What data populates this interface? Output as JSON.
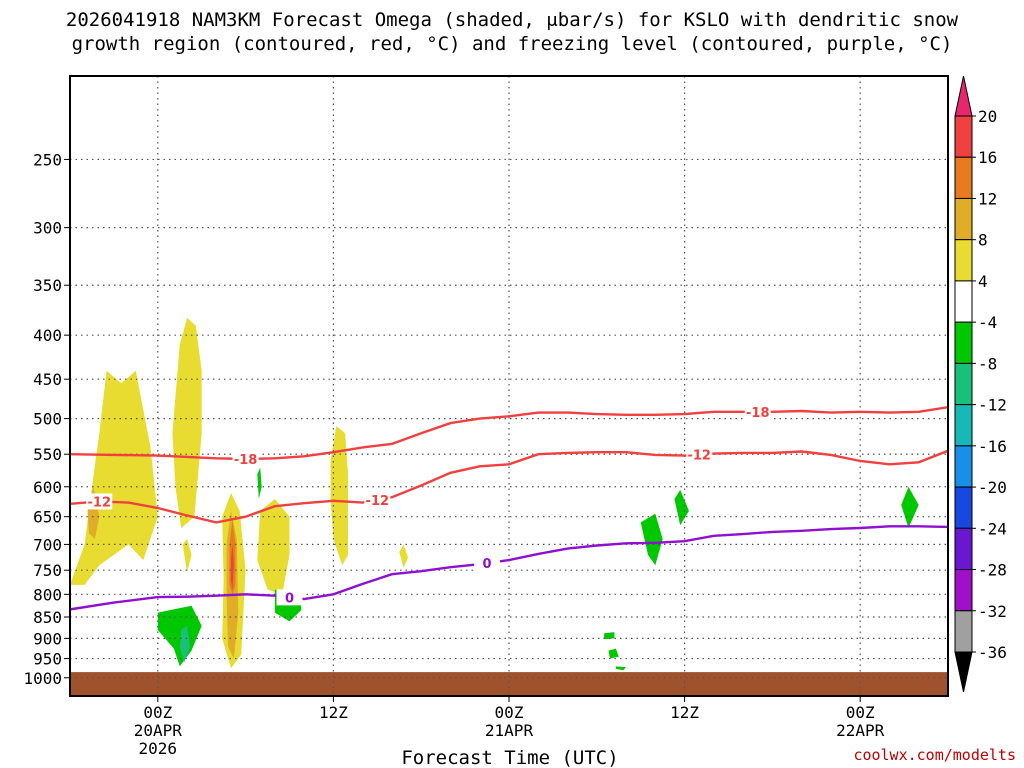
{
  "chart_data": {
    "type": "heatmap",
    "title_lines": [
      "2026041918 NAM3KM Forecast Omega (shaded, μbar/s) for KSLO with dendritic snow",
      "growth region (contoured, red, °C) and freezing level (contoured, purple, °C)"
    ],
    "xlabel": "Forecast Time (UTC)",
    "ylabel": "",
    "x_ticks": [
      {
        "label": [
          "00Z",
          "20APR",
          "2026"
        ]
      },
      {
        "label": [
          "12Z"
        ]
      },
      {
        "label": [
          "00Z",
          "21APR"
        ]
      },
      {
        "label": [
          "12Z"
        ]
      },
      {
        "label": [
          "00Z",
          "22APR"
        ]
      }
    ],
    "y_ticks": [
      250,
      300,
      350,
      400,
      450,
      500,
      550,
      600,
      650,
      700,
      750,
      800,
      850,
      900,
      950,
      1000
    ],
    "y_scale": "log",
    "ylim": [
      1050,
      200
    ],
    "xlim_hours": [
      -6,
      54
    ],
    "grid": true,
    "colorbar": {
      "labels": [
        "20",
        "16",
        "12",
        "8",
        "4",
        "-4",
        "-8",
        "-12",
        "-16",
        "-20",
        "-24",
        "-28",
        "-32",
        "-36"
      ],
      "colors": [
        "#e8266e",
        "#f04040",
        "#e87a20",
        "#e0ad28",
        "#e8dc30",
        "#ffffff",
        "#00c800",
        "#18c07a",
        "#18b8b8",
        "#1890e8",
        "#1848e0",
        "#6a18d0",
        "#a010c8",
        "#a0a0a0",
        "#000000"
      ]
    },
    "contours": [
      {
        "value": -18,
        "color": "#f04040",
        "label": "-18",
        "points": [
          [
            -6,
            550
          ],
          [
            -3,
            551
          ],
          [
            0,
            552
          ],
          [
            2,
            554
          ],
          [
            4,
            556
          ],
          [
            6,
            557
          ],
          [
            8,
            556
          ],
          [
            10,
            553
          ],
          [
            12,
            547
          ],
          [
            14,
            540
          ],
          [
            16,
            535
          ],
          [
            18,
            520
          ],
          [
            20,
            506
          ],
          [
            22,
            500
          ],
          [
            24,
            497
          ],
          [
            26,
            492
          ],
          [
            28,
            492
          ],
          [
            30,
            494
          ],
          [
            32,
            495
          ],
          [
            34,
            495
          ],
          [
            36,
            494
          ],
          [
            38,
            491
          ],
          [
            40,
            491
          ],
          [
            42,
            491
          ],
          [
            44,
            490
          ],
          [
            46,
            492
          ],
          [
            48,
            491
          ],
          [
            50,
            492
          ],
          [
            52,
            491
          ],
          [
            54,
            485
          ]
        ]
      },
      {
        "value": -12,
        "color": "#f04040",
        "label": "-12",
        "points": [
          [
            -6,
            628
          ],
          [
            -4,
            624
          ],
          [
            -2,
            626
          ],
          [
            0,
            635
          ],
          [
            2,
            648
          ],
          [
            4,
            660
          ],
          [
            6,
            650
          ],
          [
            8,
            632
          ],
          [
            10,
            627
          ],
          [
            12,
            623
          ],
          [
            14,
            626
          ],
          [
            16,
            617
          ],
          [
            18,
            598
          ],
          [
            20,
            578
          ],
          [
            22,
            568
          ],
          [
            24,
            565
          ],
          [
            26,
            550
          ],
          [
            28,
            548
          ],
          [
            30,
            547
          ],
          [
            32,
            547
          ],
          [
            34,
            551
          ],
          [
            36,
            552
          ],
          [
            38,
            549
          ],
          [
            40,
            548
          ],
          [
            42,
            548
          ],
          [
            44,
            546
          ],
          [
            46,
            551
          ],
          [
            48,
            560
          ],
          [
            50,
            565
          ],
          [
            52,
            562
          ],
          [
            54,
            545
          ]
        ]
      },
      {
        "value": 0,
        "color": "#9010d0",
        "label": "0",
        "points": [
          [
            -6,
            833
          ],
          [
            -3,
            818
          ],
          [
            0,
            806
          ],
          [
            2,
            805
          ],
          [
            4,
            803
          ],
          [
            6,
            800
          ],
          [
            8,
            803
          ],
          [
            10,
            810
          ],
          [
            12,
            800
          ],
          [
            14,
            778
          ],
          [
            16,
            758
          ],
          [
            18,
            752
          ],
          [
            20,
            744
          ],
          [
            22,
            738
          ],
          [
            24,
            730
          ],
          [
            26,
            718
          ],
          [
            28,
            708
          ],
          [
            30,
            702
          ],
          [
            32,
            698
          ],
          [
            34,
            697
          ],
          [
            36,
            694
          ],
          [
            38,
            684
          ],
          [
            40,
            681
          ],
          [
            42,
            677
          ],
          [
            44,
            675
          ],
          [
            46,
            672
          ],
          [
            48,
            670
          ],
          [
            50,
            667
          ],
          [
            52,
            667
          ],
          [
            54,
            668
          ]
        ]
      }
    ],
    "shaded_regions": [
      {
        "band": "4 to 8",
        "color": "#e8dc30",
        "polygon": [
          [
            -6,
            780
          ],
          [
            -5,
            700
          ],
          [
            -4.5,
            600
          ],
          [
            -4,
            520
          ],
          [
            -3.5,
            440
          ],
          [
            -2.5,
            455
          ],
          [
            -1.5,
            440
          ],
          [
            -0.5,
            540
          ],
          [
            0,
            650
          ],
          [
            -1,
            730
          ],
          [
            -2,
            700
          ],
          [
            -3,
            720
          ],
          [
            -4,
            740
          ],
          [
            -5,
            780
          ]
        ]
      },
      {
        "band": "4 to 8",
        "color": "#e8dc30",
        "polygon": [
          [
            1,
            520
          ],
          [
            1.5,
            410
          ],
          [
            2,
            382
          ],
          [
            2.6,
            390
          ],
          [
            3,
            440
          ],
          [
            3,
            520
          ],
          [
            2.5,
            650
          ],
          [
            1.6,
            670
          ],
          [
            1.2,
            600
          ]
        ]
      },
      {
        "band": "4 to 8",
        "color": "#e8dc30",
        "polygon": [
          [
            4.4,
            650
          ],
          [
            5,
            610
          ],
          [
            5.6,
            640
          ],
          [
            6.0,
            750
          ],
          [
            5.7,
            940
          ],
          [
            5,
            975
          ],
          [
            4.4,
            900
          ],
          [
            4.5,
            770
          ]
        ]
      },
      {
        "band": "4 to 8",
        "color": "#e8dc30",
        "polygon": [
          [
            7,
            640
          ],
          [
            8,
            620
          ],
          [
            9,
            650
          ],
          [
            9,
            720
          ],
          [
            8.5,
            800
          ],
          [
            7.5,
            790
          ],
          [
            6.8,
            730
          ]
        ]
      },
      {
        "band": "4 to 8",
        "color": "#e8dc30",
        "polygon": [
          [
            11.8,
            560
          ],
          [
            12.2,
            510
          ],
          [
            12.8,
            520
          ],
          [
            13,
            580
          ],
          [
            13,
            720
          ],
          [
            12.6,
            740
          ],
          [
            12,
            690
          ],
          [
            11.8,
            620
          ]
        ]
      },
      {
        "band": "4 to 8",
        "color": "#e8dc30",
        "polygon": [
          [
            16.5,
            715
          ],
          [
            16.8,
            700
          ],
          [
            17.1,
            725
          ],
          [
            16.8,
            745
          ]
        ]
      },
      {
        "band": "4 to 8",
        "color": "#e8dc30",
        "polygon": [
          [
            1.7,
            700
          ],
          [
            2.0,
            690
          ],
          [
            2.3,
            720
          ],
          [
            2.0,
            755
          ]
        ]
      },
      {
        "band": "8 to 12",
        "color": "#e0ad28",
        "polygon": [
          [
            4.7,
            700
          ],
          [
            5,
            640
          ],
          [
            5.4,
            690
          ],
          [
            5.5,
            840
          ],
          [
            5.2,
            950
          ],
          [
            4.8,
            920
          ],
          [
            4.7,
            800
          ]
        ]
      },
      {
        "band": "8 to 12",
        "color": "#e0ad28",
        "polygon": [
          [
            -4.8,
            640
          ],
          [
            -4.4,
            600
          ],
          [
            -4.0,
            650
          ],
          [
            -4.3,
            690
          ],
          [
            -4.7,
            680
          ]
        ]
      },
      {
        "band": "12 to 16",
        "color": "#e87a20",
        "polygon": [
          [
            4.9,
            700
          ],
          [
            5.1,
            655
          ],
          [
            5.3,
            700
          ],
          [
            5.3,
            780
          ],
          [
            5.1,
            800
          ],
          [
            4.9,
            780
          ]
        ]
      },
      {
        "band": "16 to 20",
        "color": "#f04040",
        "polygon": [
          [
            5.0,
            730
          ],
          [
            5.1,
            700
          ],
          [
            5.2,
            740
          ],
          [
            5.1,
            790
          ],
          [
            5.0,
            770
          ]
        ]
      },
      {
        "band": "-4 to -8",
        "color": "#00c800",
        "polygon": [
          [
            0,
            840
          ],
          [
            2.3,
            825
          ],
          [
            3,
            870
          ],
          [
            2.3,
            930
          ],
          [
            1.5,
            970
          ],
          [
            1.1,
            925
          ],
          [
            0,
            880
          ]
        ]
      },
      {
        "band": "-8 to -12",
        "color": "#18c07a",
        "polygon": [
          [
            1.6,
            880
          ],
          [
            2.0,
            870
          ],
          [
            2.2,
            920
          ],
          [
            1.8,
            960
          ],
          [
            1.5,
            920
          ]
        ]
      },
      {
        "band": "-4 to -8",
        "color": "#00c800",
        "polygon": [
          [
            8,
            790
          ],
          [
            9.8,
            790
          ],
          [
            9.8,
            835
          ],
          [
            9,
            860
          ],
          [
            8,
            840
          ]
        ]
      },
      {
        "band": "-4 to -8",
        "color": "#00c800",
        "polygon": [
          [
            6.8,
            580
          ],
          [
            7.0,
            570
          ],
          [
            7.1,
            600
          ],
          [
            6.9,
            620
          ]
        ]
      },
      {
        "band": "-4 to -8",
        "color": "#00c800",
        "polygon": [
          [
            33,
            660
          ],
          [
            34,
            645
          ],
          [
            34.5,
            690
          ],
          [
            34,
            740
          ],
          [
            33.5,
            720
          ]
        ]
      },
      {
        "band": "-4 to -8",
        "color": "#00c800",
        "polygon": [
          [
            35.3,
            620
          ],
          [
            35.7,
            605
          ],
          [
            36.3,
            640
          ],
          [
            35.7,
            665
          ]
        ]
      },
      {
        "band": "-4 to -8",
        "color": "#00c800",
        "polygon": [
          [
            30.5,
            888
          ],
          [
            31.2,
            885
          ],
          [
            31.2,
            900
          ],
          [
            30.5,
            902
          ]
        ]
      },
      {
        "band": "-4 to -8",
        "color": "#00c800",
        "polygon": [
          [
            30.8,
            930
          ],
          [
            31.3,
            925
          ],
          [
            31.5,
            945
          ],
          [
            30.9,
            950
          ]
        ]
      },
      {
        "band": "-4 to -8",
        "color": "#00c800",
        "polygon": [
          [
            31.3,
            970
          ],
          [
            32,
            972
          ],
          [
            31.8,
            980
          ],
          [
            31.3,
            976
          ]
        ]
      },
      {
        "band": "-4 to -8",
        "color": "#00c800",
        "polygon": [
          [
            50.8,
            630
          ],
          [
            51.3,
            600
          ],
          [
            52,
            630
          ],
          [
            51.3,
            670
          ]
        ]
      }
    ],
    "terrain": {
      "color": "#a0522d",
      "top_hpa": 985
    }
  },
  "footer": {
    "credit": "coolwx.com/modelts"
  }
}
